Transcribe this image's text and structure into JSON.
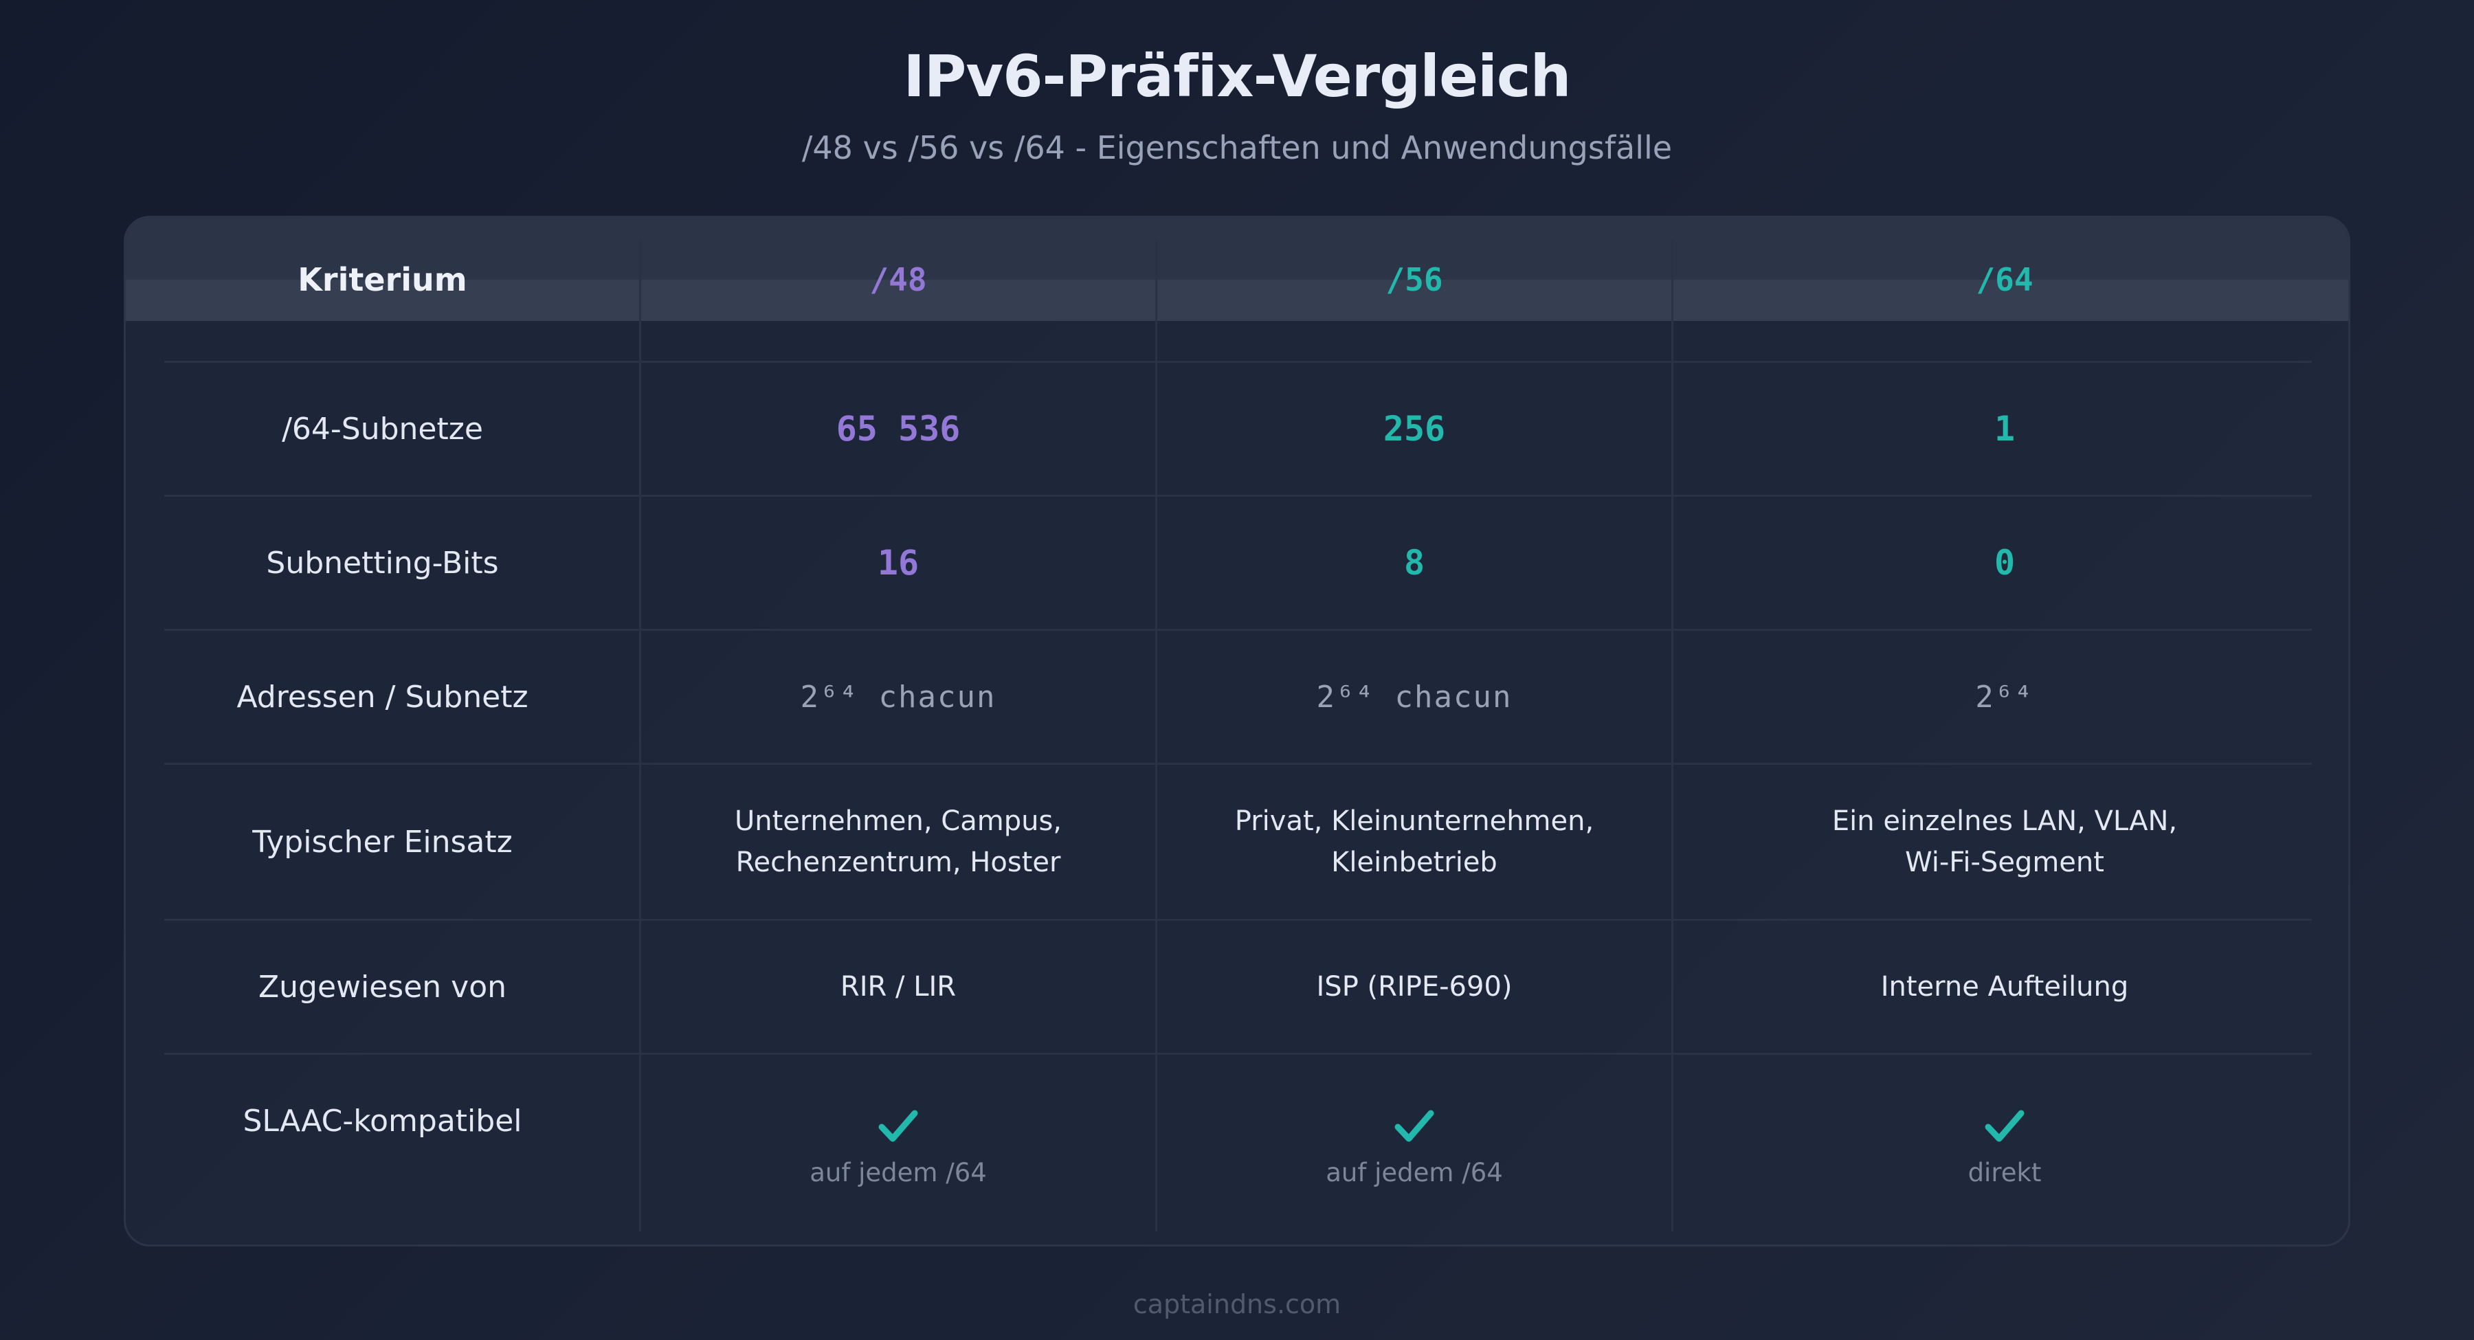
{
  "header": {
    "title": "IPv6-Präfix-Vergleich",
    "subtitle": "/48 vs /56 vs /64 - Eigenschaften und Anwendungsfälle"
  },
  "table": {
    "columns": [
      {
        "label": "Kriterium"
      },
      {
        "label": "/48",
        "color": "#9378d8"
      },
      {
        "label": "/56",
        "color": "#22b8ac"
      },
      {
        "label": "/64",
        "color": "#22b8ac"
      }
    ],
    "rows": [
      {
        "criterion": "/64-Subnetze",
        "values": [
          "65 536",
          "256",
          "1"
        ]
      },
      {
        "criterion": "Subnetting-Bits",
        "values": [
          "16",
          "8",
          "0"
        ]
      },
      {
        "criterion": "Adressen / Subnetz",
        "values": [
          "2⁶⁴ chacun",
          "2⁶⁴ chacun",
          "2⁶⁴"
        ]
      },
      {
        "criterion": "Typischer Einsatz",
        "values": [
          [
            "Unternehmen, Campus,",
            "Rechenzentrum, Hoster"
          ],
          [
            "Privat, Kleinunternehmen,",
            "Kleinbetrieb"
          ],
          [
            "Ein einzelnes LAN, VLAN,",
            "Wi-Fi-Segment"
          ]
        ]
      },
      {
        "criterion": "Zugewiesen von",
        "values": [
          "RIR / LIR",
          "ISP (RIPE-690)",
          "Interne Aufteilung"
        ]
      },
      {
        "criterion": "SLAAC-kompatibel",
        "values": [
          "auf jedem /64",
          "auf jedem /64",
          "direkt"
        ],
        "icon": "check-icon"
      }
    ]
  },
  "colors": {
    "purple": "#9378d8",
    "teal": "#22b8ac",
    "background": "#171e30"
  },
  "footer": {
    "text": "captaindns.com"
  }
}
